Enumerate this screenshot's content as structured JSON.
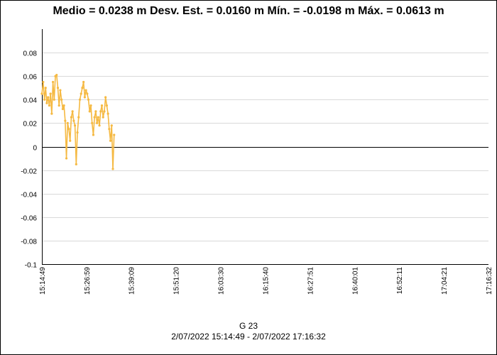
{
  "chart_data": {
    "type": "line",
    "title": "Medio = 0.0238 m  Desv. Est. = 0.0160 m  Mín. = -0.0198 m  Máx. = 0.0613 m",
    "xlabel": "G 23",
    "xlabel_range": "2/07/2022 15:14:49 - 2/07/2022 17:16:32",
    "ylabel": "",
    "ylim": [
      -0.1,
      0.1
    ],
    "yticks": [
      "0.08",
      "0.06",
      "0.04",
      "0.02",
      "0",
      "-0.02",
      "-0.04",
      "-0.06",
      "-0.08",
      "-0.1"
    ],
    "xticks": [
      "15:14:49",
      "15:26:59",
      "15:39:09",
      "15:51:20",
      "16:03:30",
      "16:15:40",
      "16:27:51",
      "16:40:01",
      "16:52:11",
      "17:04:21",
      "17:16:32"
    ],
    "grid": true,
    "series": [
      {
        "color": "#f5b942",
        "x": [
          "15:14:49",
          "15:15:10",
          "15:15:30",
          "15:15:50",
          "15:16:10",
          "15:16:30",
          "15:16:50",
          "15:17:10",
          "15:17:30",
          "15:17:50",
          "15:18:10",
          "15:18:30",
          "15:18:50",
          "15:19:10",
          "15:19:30",
          "15:19:50",
          "15:20:10",
          "15:20:30",
          "15:20:50",
          "15:21:10",
          "15:21:30",
          "15:21:50",
          "15:22:10",
          "15:22:30",
          "15:22:50",
          "15:23:10",
          "15:23:30",
          "15:23:50",
          "15:24:10",
          "15:24:30",
          "15:24:50",
          "15:25:10",
          "15:25:30",
          "15:25:50",
          "15:26:10",
          "15:26:30",
          "15:26:50",
          "15:27:10",
          "15:27:30",
          "15:27:50",
          "15:28:10",
          "15:28:30",
          "15:28:50",
          "15:29:10",
          "15:29:30",
          "15:29:50",
          "15:30:10",
          "15:30:30",
          "15:30:50",
          "15:31:10",
          "15:31:30",
          "15:31:50",
          "15:32:10",
          "15:32:30",
          "15:32:50",
          "15:33:10",
          "15:33:30",
          "15:33:50",
          "15:34:10",
          "15:34:30"
        ],
        "y": [
          0.045,
          0.055,
          0.04,
          0.05,
          0.037,
          0.042,
          0.035,
          0.045,
          0.028,
          0.055,
          0.04,
          0.06,
          0.061,
          0.05,
          0.035,
          0.048,
          0.04,
          0.032,
          0.035,
          0.022,
          -0.01,
          0.02,
          0.015,
          0.005,
          0.025,
          0.03,
          0.022,
          0.018,
          -0.015,
          0.012,
          0.025,
          0.04,
          0.045,
          0.05,
          0.055,
          0.042,
          0.048,
          0.045,
          0.04,
          0.03,
          0.035,
          0.02,
          0.01,
          0.025,
          0.03,
          0.02,
          0.025,
          0.018,
          0.03,
          0.035,
          0.025,
          0.03,
          0.042,
          0.035,
          0.028,
          0.015,
          0.005,
          0.018,
          -0.019,
          0.01
        ]
      }
    ]
  }
}
